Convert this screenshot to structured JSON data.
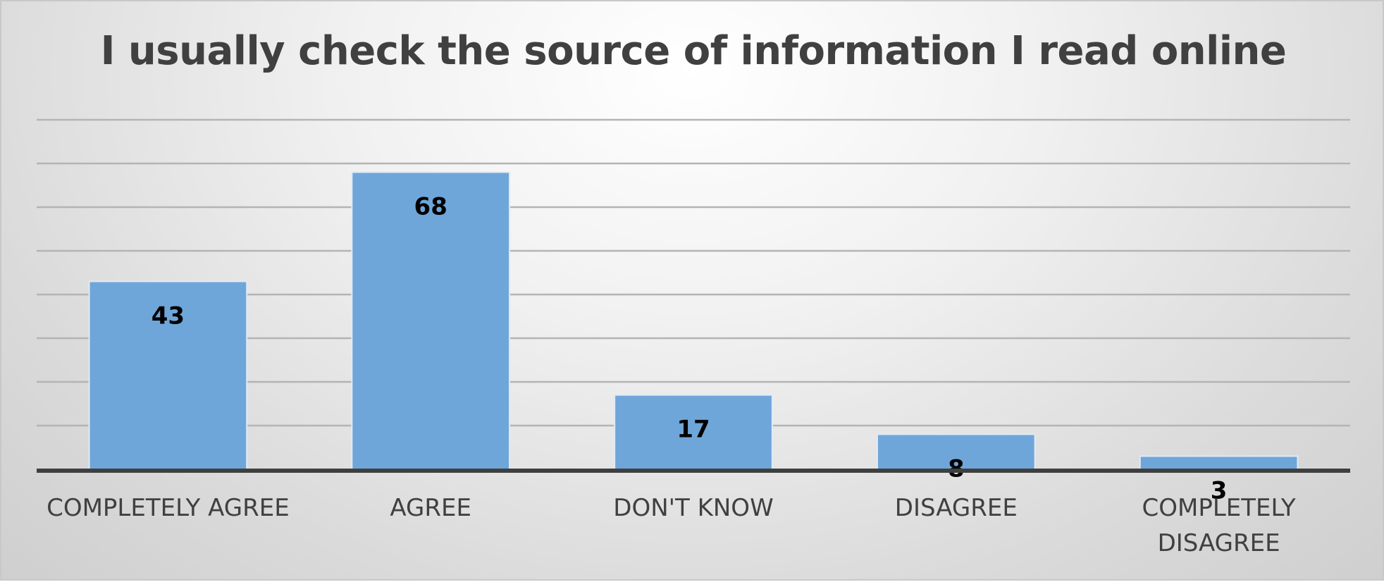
{
  "chart_data": {
    "type": "bar",
    "title": "I usually check the source of information I read online",
    "xlabel": "",
    "ylabel": "",
    "categories": [
      "COMPLETELY AGREE",
      "AGREE",
      "DON'T KNOW",
      "DISAGREE",
      "COMPLETELY DISAGREE"
    ],
    "category_lines": [
      [
        "COMPLETELY AGREE"
      ],
      [
        "AGREE"
      ],
      [
        "DON'T KNOW"
      ],
      [
        "DISAGREE"
      ],
      [
        "COMPLETELY",
        "DISAGREE"
      ]
    ],
    "values": [
      43,
      68,
      17,
      8,
      3
    ],
    "ylim": [
      0,
      80
    ],
    "grid": true,
    "legend": "none",
    "bar_color": "#6fa6d9"
  }
}
